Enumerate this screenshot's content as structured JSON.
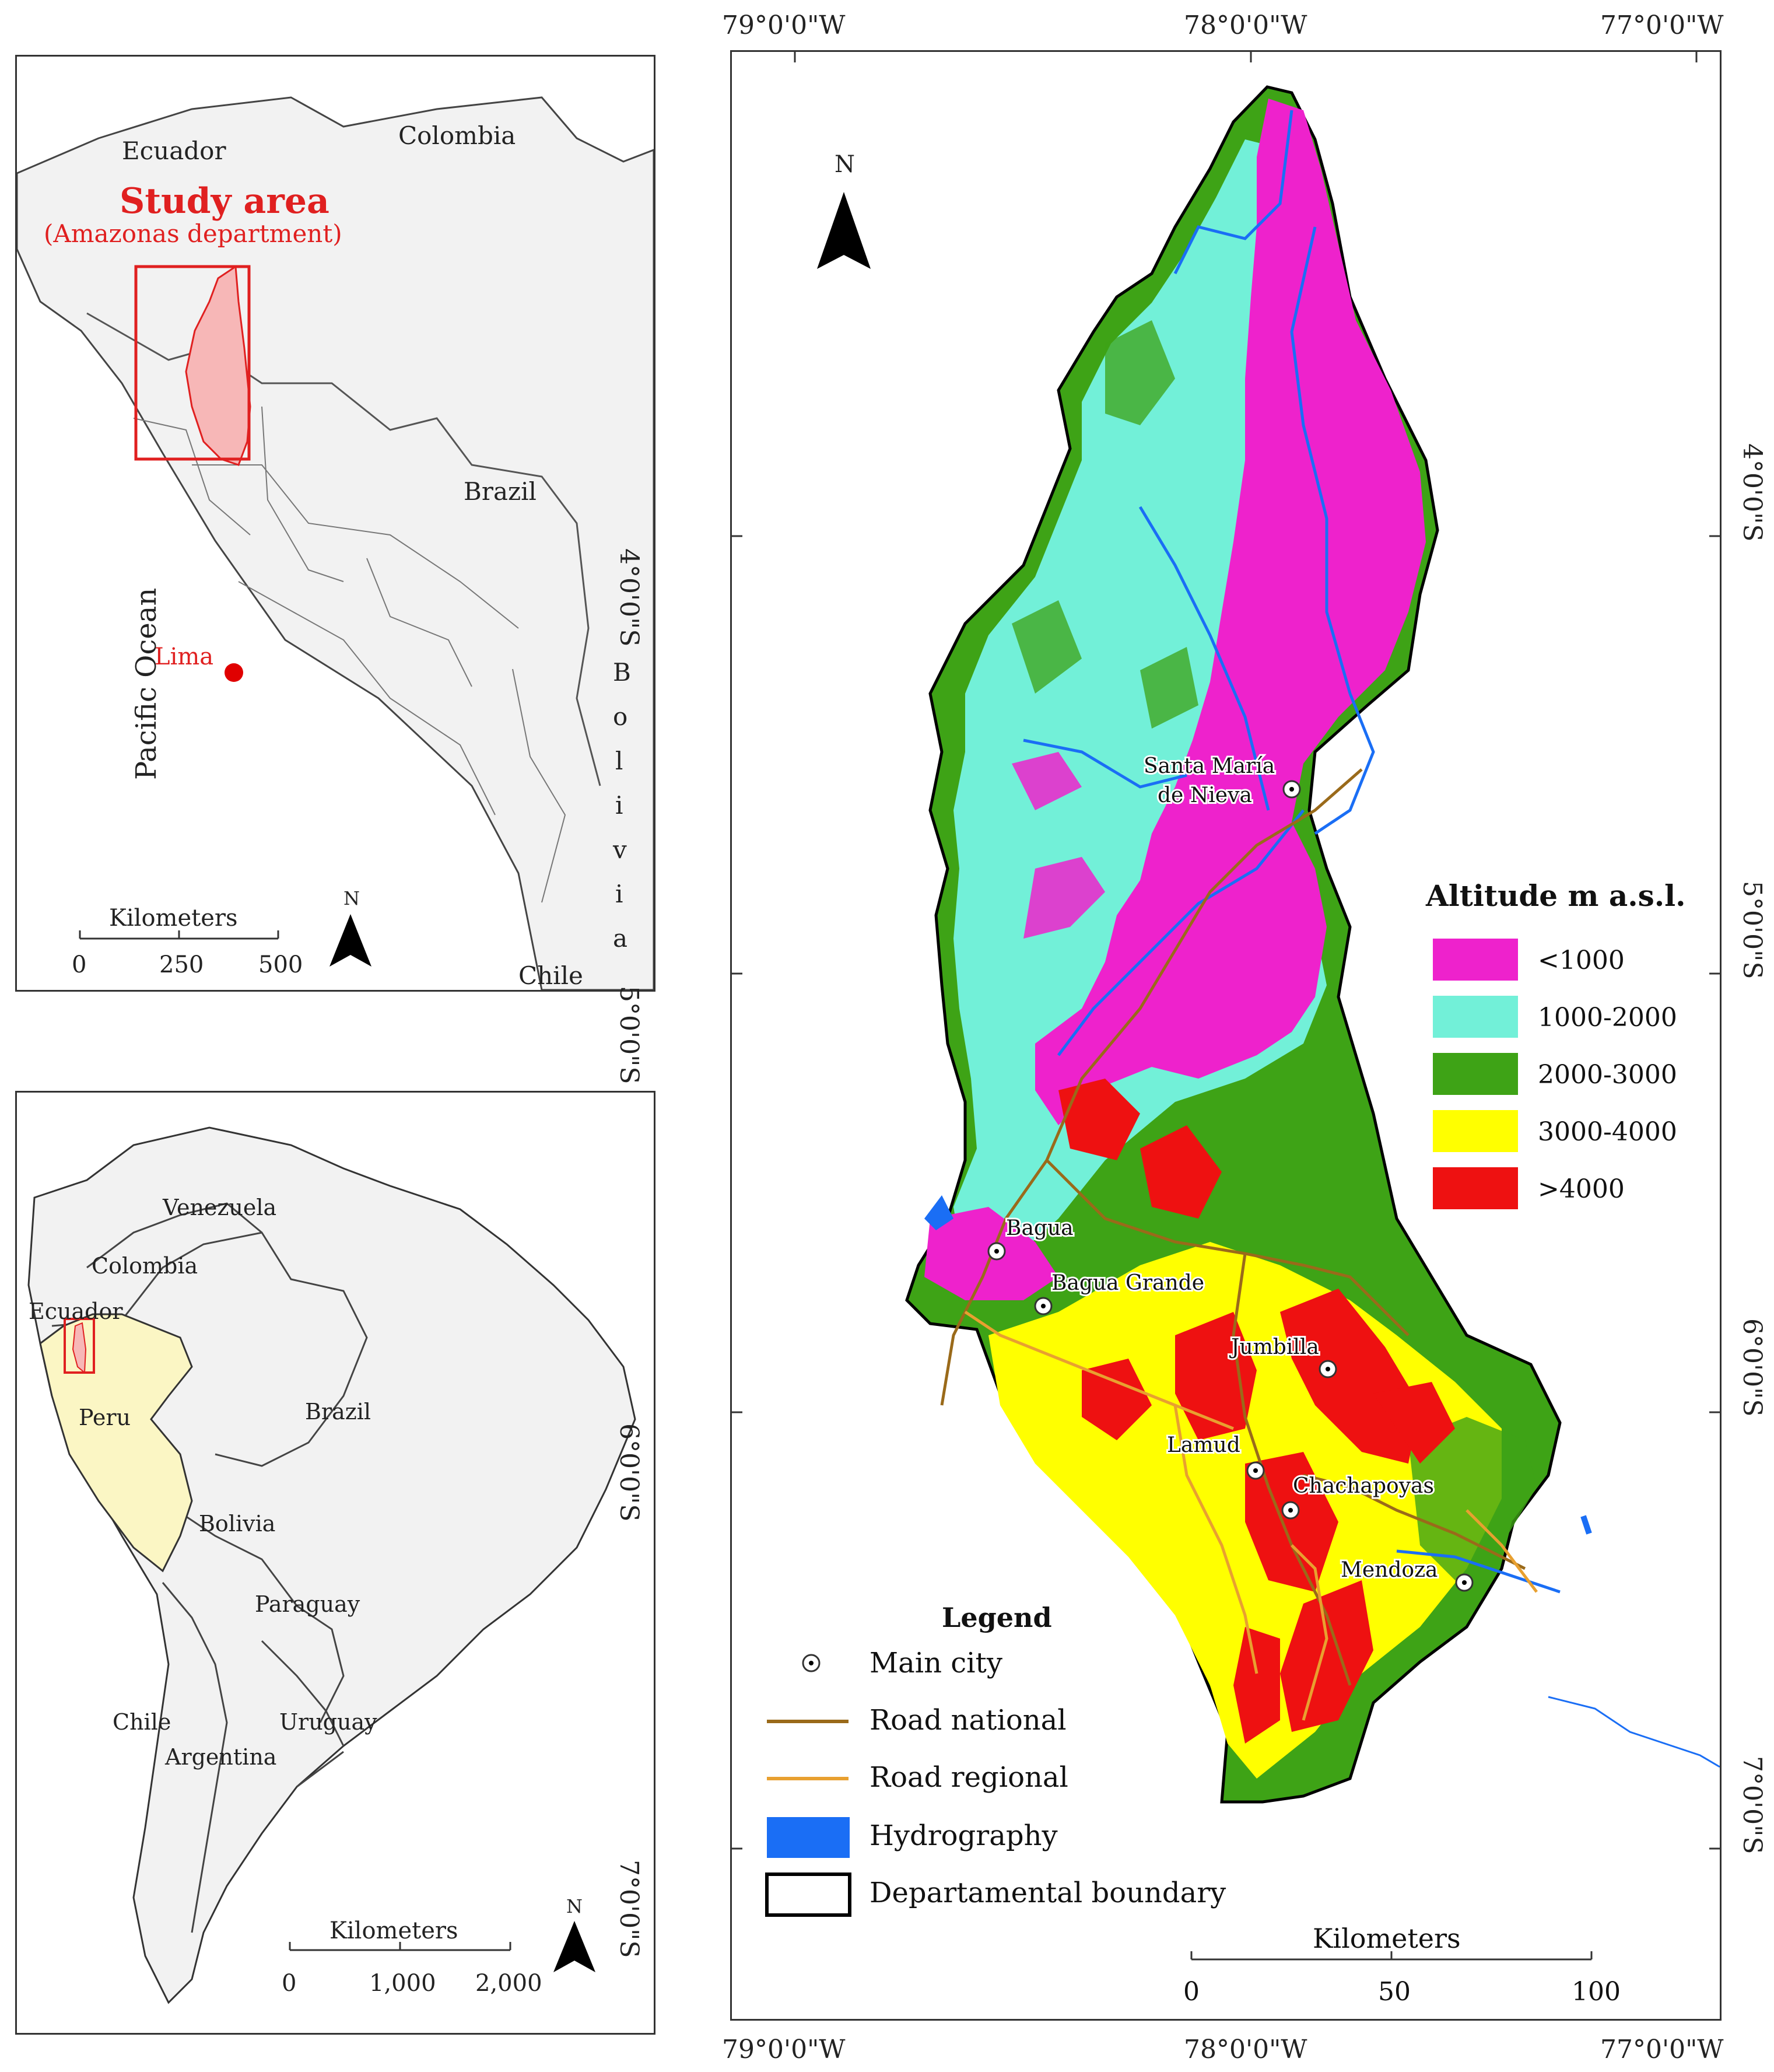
{
  "inset_peru": {
    "countries": {
      "ecuador": "Ecuador",
      "colombia": "Colombia",
      "brazil": "Brazil",
      "chile": "Chile"
    },
    "bolivia_letters": [
      "B",
      "o",
      "l",
      "i",
      "v",
      "i",
      "a"
    ],
    "ocean": "Pacific Ocean",
    "study_area_title": "Study area",
    "study_area_subtitle": "(Amazonas department)",
    "capital": "Lima",
    "north": "N",
    "scale": {
      "title": "Kilometers",
      "ticks": [
        "0",
        "250",
        "500"
      ]
    },
    "colors": {
      "study_area": "#e02020",
      "land": "#f2f2f2",
      "highlight": "#f7b7b7"
    }
  },
  "inset_south_america": {
    "countries": {
      "venezuela": "Venezuela",
      "colombia": "Colombia",
      "ecuador": "Ecuador",
      "peru": "Peru",
      "brazil": "Brazil",
      "bolivia": "Bolivia",
      "paraguay": "Paraguay",
      "chile": "Chile",
      "uruguay": "Uruguay",
      "argentina": "Argentina"
    },
    "north": "N",
    "scale": {
      "title": "Kilometers",
      "ticks": [
        "0",
        "1,000",
        "2,000"
      ]
    },
    "colors": {
      "peru_fill": "#fbf6c4",
      "land": "#f2f2f2"
    }
  },
  "main_map": {
    "top_longitudes": [
      "79°0'0\"W",
      "78°0'0\"W",
      "77°0'0\"W"
    ],
    "bottom_longitudes": [
      "79°0'0\"W",
      "78°0'0\"W",
      "77°0'0\"W"
    ],
    "left_latitudes": [
      "4°0'0\"S",
      "5°0'0\"S",
      "6°0'0\"S",
      "7°0'0\"S"
    ],
    "right_latitudes": [
      "4°0'0\"S",
      "5°0'0\"S",
      "6°0'0\"S",
      "7°0'0\"S"
    ],
    "north": "N",
    "cities": [
      {
        "name": "Santa María de Nieva",
        "line1": "Santa María",
        "line2": "de Nieva"
      },
      {
        "name": "Bagua"
      },
      {
        "name": "Bagua Grande"
      },
      {
        "name": "Jumbilla"
      },
      {
        "name": "Lamud"
      },
      {
        "name": "Chachapoyas"
      },
      {
        "name": "Mendoza"
      }
    ],
    "altitude_legend": {
      "title": "Altitude m a.s.l.",
      "classes": [
        {
          "label": "<1000",
          "color": "#ee22cc"
        },
        {
          "label": "1000-2000",
          "color": "#72f0d8"
        },
        {
          "label": "2000-3000",
          "color": "#3ea316"
        },
        {
          "label": "3000-4000",
          "color": "#ffff00"
        },
        {
          "label": ">4000",
          "color": "#ee1111"
        }
      ]
    },
    "legend": {
      "title": "Legend",
      "items": [
        {
          "label": "Main city",
          "symbol": "city"
        },
        {
          "label": "Road national",
          "symbol": "line",
          "color": "#9a6a1a"
        },
        {
          "label": "Road regional",
          "symbol": "line",
          "color": "#e8a030"
        },
        {
          "label": "Hydrography",
          "symbol": "box",
          "color": "#1a6ef5"
        },
        {
          "label": "Departamental boundary",
          "symbol": "outline",
          "color": "#000000"
        }
      ]
    },
    "scale": {
      "title": "Kilometers",
      "ticks": [
        "0",
        "50",
        "100"
      ]
    }
  }
}
